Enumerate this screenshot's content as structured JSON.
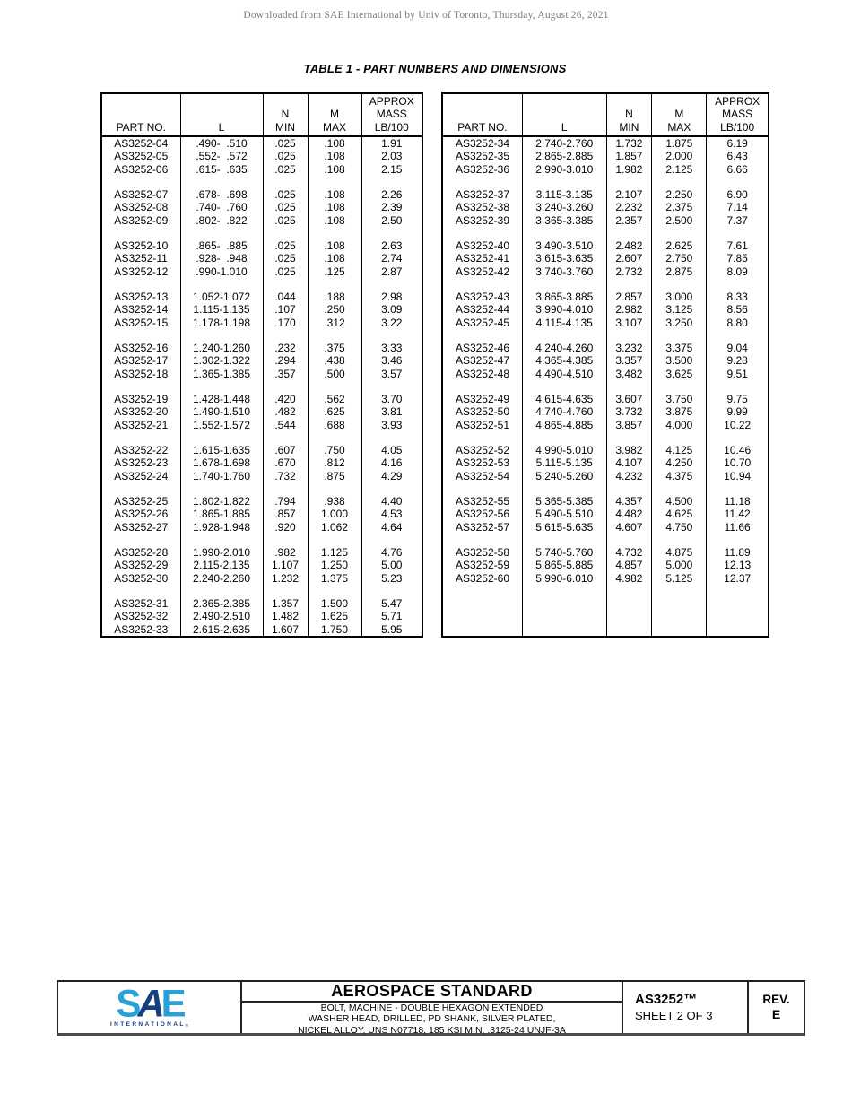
{
  "page": {
    "watermark": "Downloaded from SAE International by Univ of Toronto, Thursday, August 26, 2021",
    "table_title": "TABLE 1 - PART NUMBERS AND DIMENSIONS"
  },
  "tables": [
    {
      "id": "table-left",
      "column_headers": [
        [
          "PART NO."
        ],
        [
          "L"
        ],
        [
          "N",
          "MIN"
        ],
        [
          "M",
          "MAX"
        ],
        [
          "APPROX",
          "MASS",
          "LB/100"
        ]
      ],
      "groups": [
        [
          [
            "AS3252-04",
            ".490-  .510",
            ".025",
            ".108",
            "1.91"
          ],
          [
            "AS3252-05",
            ".552-  .572",
            ".025",
            ".108",
            "2.03"
          ],
          [
            "AS3252-06",
            ".615-  .635",
            ".025",
            ".108",
            "2.15"
          ]
        ],
        [
          [
            "AS3252-07",
            ".678-  .698",
            ".025",
            ".108",
            "2.26"
          ],
          [
            "AS3252-08",
            ".740-  .760",
            ".025",
            ".108",
            "2.39"
          ],
          [
            "AS3252-09",
            ".802-  .822",
            ".025",
            ".108",
            "2.50"
          ]
        ],
        [
          [
            "AS3252-10",
            ".865-  .885",
            ".025",
            ".108",
            "2.63"
          ],
          [
            "AS3252-11",
            ".928-  .948",
            ".025",
            ".108",
            "2.74"
          ],
          [
            "AS3252-12",
            ".990-1.010",
            ".025",
            ".125",
            "2.87"
          ]
        ],
        [
          [
            "AS3252-13",
            "1.052-1.072",
            ".044",
            ".188",
            "2.98"
          ],
          [
            "AS3252-14",
            "1.115-1.135",
            ".107",
            ".250",
            "3.09"
          ],
          [
            "AS3252-15",
            "1.178-1.198",
            ".170",
            ".312",
            "3.22"
          ]
        ],
        [
          [
            "AS3252-16",
            "1.240-1.260",
            ".232",
            ".375",
            "3.33"
          ],
          [
            "AS3252-17",
            "1.302-1.322",
            ".294",
            ".438",
            "3.46"
          ],
          [
            "AS3252-18",
            "1.365-1.385",
            ".357",
            ".500",
            "3.57"
          ]
        ],
        [
          [
            "AS3252-19",
            "1.428-1.448",
            ".420",
            ".562",
            "3.70"
          ],
          [
            "AS3252-20",
            "1.490-1.510",
            ".482",
            ".625",
            "3.81"
          ],
          [
            "AS3252-21",
            "1.552-1.572",
            ".544",
            ".688",
            "3.93"
          ]
        ],
        [
          [
            "AS3252-22",
            "1.615-1.635",
            ".607",
            ".750",
            "4.05"
          ],
          [
            "AS3252-23",
            "1.678-1.698",
            ".670",
            ".812",
            "4.16"
          ],
          [
            "AS3252-24",
            "1.740-1.760",
            ".732",
            ".875",
            "4.29"
          ]
        ],
        [
          [
            "AS3252-25",
            "1.802-1.822",
            ".794",
            ".938",
            "4.40"
          ],
          [
            "AS3252-26",
            "1.865-1.885",
            ".857",
            "1.000",
            "4.53"
          ],
          [
            "AS3252-27",
            "1.928-1.948",
            ".920",
            "1.062",
            "4.64"
          ]
        ],
        [
          [
            "AS3252-28",
            "1.990-2.010",
            ".982",
            "1.125",
            "4.76"
          ],
          [
            "AS3252-29",
            "2.115-2.135",
            "1.107",
            "1.250",
            "5.00"
          ],
          [
            "AS3252-30",
            "2.240-2.260",
            "1.232",
            "1.375",
            "5.23"
          ]
        ],
        [
          [
            "AS3252-31",
            "2.365-2.385",
            "1.357",
            "1.500",
            "5.47"
          ],
          [
            "AS3252-32",
            "2.490-2.510",
            "1.482",
            "1.625",
            "5.71"
          ],
          [
            "AS3252-33",
            "2.615-2.635",
            "1.607",
            "1.750",
            "5.95"
          ]
        ]
      ],
      "trailing_blank": false
    },
    {
      "id": "table-right",
      "column_headers": [
        [
          "PART NO."
        ],
        [
          "L"
        ],
        [
          "N",
          "MIN"
        ],
        [
          "M",
          "MAX"
        ],
        [
          "APPROX",
          "MASS",
          "LB/100"
        ]
      ],
      "groups": [
        [
          [
            "AS3252-34",
            "2.740-2.760",
            "1.732",
            "1.875",
            "6.19"
          ],
          [
            "AS3252-35",
            "2.865-2.885",
            "1.857",
            "2.000",
            "6.43"
          ],
          [
            "AS3252-36",
            "2.990-3.010",
            "1.982",
            "2.125",
            "6.66"
          ]
        ],
        [
          [
            "AS3252-37",
            "3.115-3.135",
            "2.107",
            "2.250",
            "6.90"
          ],
          [
            "AS3252-38",
            "3.240-3.260",
            "2.232",
            "2.375",
            "7.14"
          ],
          [
            "AS3252-39",
            "3.365-3.385",
            "2.357",
            "2.500",
            "7.37"
          ]
        ],
        [
          [
            "AS3252-40",
            "3.490-3.510",
            "2.482",
            "2.625",
            "7.61"
          ],
          [
            "AS3252-41",
            "3.615-3.635",
            "2.607",
            "2.750",
            "7.85"
          ],
          [
            "AS3252-42",
            "3.740-3.760",
            "2.732",
            "2.875",
            "8.09"
          ]
        ],
        [
          [
            "AS3252-43",
            "3.865-3.885",
            "2.857",
            "3.000",
            "8.33"
          ],
          [
            "AS3252-44",
            "3.990-4.010",
            "2.982",
            "3.125",
            "8.56"
          ],
          [
            "AS3252-45",
            "4.115-4.135",
            "3.107",
            "3.250",
            "8.80"
          ]
        ],
        [
          [
            "AS3252-46",
            "4.240-4.260",
            "3.232",
            "3.375",
            "9.04"
          ],
          [
            "AS3252-47",
            "4.365-4.385",
            "3.357",
            "3.500",
            "9.28"
          ],
          [
            "AS3252-48",
            "4.490-4.510",
            "3.482",
            "3.625",
            "9.51"
          ]
        ],
        [
          [
            "AS3252-49",
            "4.615-4.635",
            "3.607",
            "3.750",
            "9.75"
          ],
          [
            "AS3252-50",
            "4.740-4.760",
            "3.732",
            "3.875",
            "9.99"
          ],
          [
            "AS3252-51",
            "4.865-4.885",
            "3.857",
            "4.000",
            "10.22"
          ]
        ],
        [
          [
            "AS3252-52",
            "4.990-5.010",
            "3.982",
            "4.125",
            "10.46"
          ],
          [
            "AS3252-53",
            "5.115-5.135",
            "4.107",
            "4.250",
            "10.70"
          ],
          [
            "AS3252-54",
            "5.240-5.260",
            "4.232",
            "4.375",
            "10.94"
          ]
        ],
        [
          [
            "AS3252-55",
            "5.365-5.385",
            "4.357",
            "4.500",
            "11.18"
          ],
          [
            "AS3252-56",
            "5.490-5.510",
            "4.482",
            "4.625",
            "11.42"
          ],
          [
            "AS3252-57",
            "5.615-5.635",
            "4.607",
            "4.750",
            "11.66"
          ]
        ],
        [
          [
            "AS3252-58",
            "5.740-5.760",
            "4.732",
            "4.875",
            "11.89"
          ],
          [
            "AS3252-59",
            "5.865-5.885",
            "4.857",
            "5.000",
            "12.13"
          ],
          [
            "AS3252-60",
            "5.990-6.010",
            "4.982",
            "5.125",
            "12.37"
          ]
        ]
      ],
      "trailing_blank": true
    }
  ],
  "footer": {
    "logo": {
      "letters": [
        "S",
        "A",
        "E"
      ],
      "subtitle": "INTERNATIONAL",
      "reg": "®",
      "colors": {
        "light": "#29A0D8",
        "dark": "#183E7D"
      }
    },
    "title": "AEROSPACE STANDARD",
    "description_lines": [
      "BOLT, MACHINE - DOUBLE HEXAGON EXTENDED",
      "WASHER HEAD, DRILLED, PD SHANK, SILVER PLATED,",
      "NICKEL ALLOY, UNS N07718, 185 KSI MIN, .3125-24 UNJF-3A"
    ],
    "doc_number": "AS3252™",
    "sheet": "SHEET 2 OF 3",
    "rev_label": "REV.",
    "rev_value": "E"
  }
}
